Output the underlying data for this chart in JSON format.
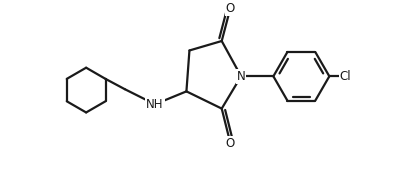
{
  "background_color": "#ffffff",
  "line_color": "#1a1a1a",
  "line_width": 1.6,
  "font_size": 8.5,
  "xlim": [
    -3.8,
    3.2
  ],
  "ylim": [
    -2.6,
    1.4
  ]
}
